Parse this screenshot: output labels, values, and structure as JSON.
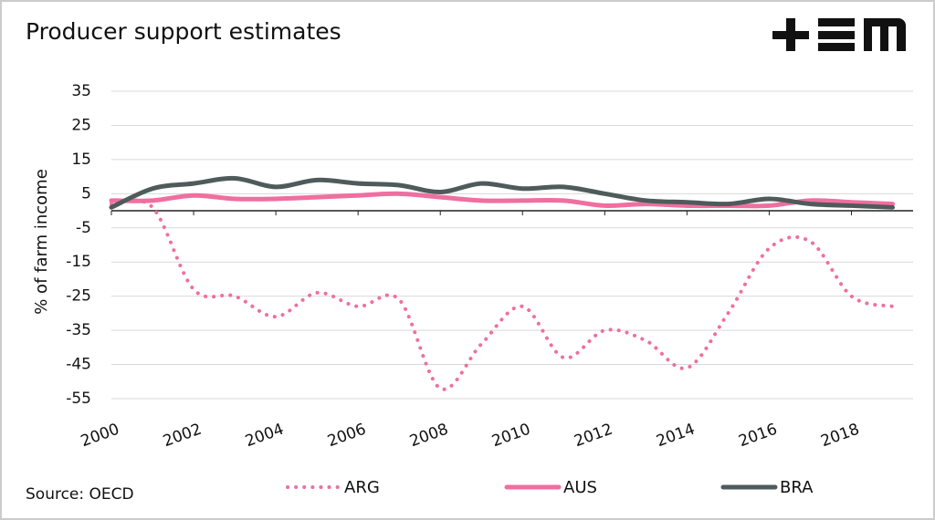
{
  "chart_data": {
    "type": "line",
    "title": "Producer support estimates",
    "y_axis_label": "% of farm income",
    "source": "Source: OECD",
    "x": [
      2000,
      2001,
      2002,
      2003,
      2004,
      2005,
      2006,
      2007,
      2008,
      2009,
      2010,
      2011,
      2012,
      2013,
      2014,
      2015,
      2016,
      2017,
      2018,
      2019
    ],
    "xlim": [
      2000,
      2019.5
    ],
    "xticks": [
      2000,
      2002,
      2004,
      2006,
      2008,
      2010,
      2012,
      2014,
      2016,
      2018
    ],
    "ylim": [
      -55,
      35
    ],
    "yticks": [
      35,
      25,
      15,
      5,
      -5,
      -15,
      -25,
      -35,
      -45,
      -55
    ],
    "grid": true,
    "series": [
      {
        "name": "ARG",
        "color": "#f06ea0",
        "dotted": true,
        "values": [
          2,
          1,
          -23,
          -25,
          -31,
          -24,
          -28,
          -26,
          -52,
          -39,
          -28,
          -43,
          -35,
          -38,
          -46,
          -30,
          -11,
          -9,
          -25,
          -28
        ]
      },
      {
        "name": "AUS",
        "color": "#f06ea0",
        "values": [
          3,
          3,
          4.5,
          3.5,
          3.5,
          4,
          4.5,
          5,
          4,
          3,
          3,
          3,
          1.5,
          2,
          1.5,
          1.5,
          1.5,
          3,
          2.5,
          2
        ]
      },
      {
        "name": "BRA",
        "color": "#4f5b5b",
        "values": [
          1,
          6.5,
          8,
          9.5,
          7,
          9,
          8,
          7.5,
          5.5,
          8,
          6.5,
          7,
          5,
          3,
          2.5,
          2,
          3.5,
          2,
          1.5,
          1
        ]
      }
    ]
  }
}
